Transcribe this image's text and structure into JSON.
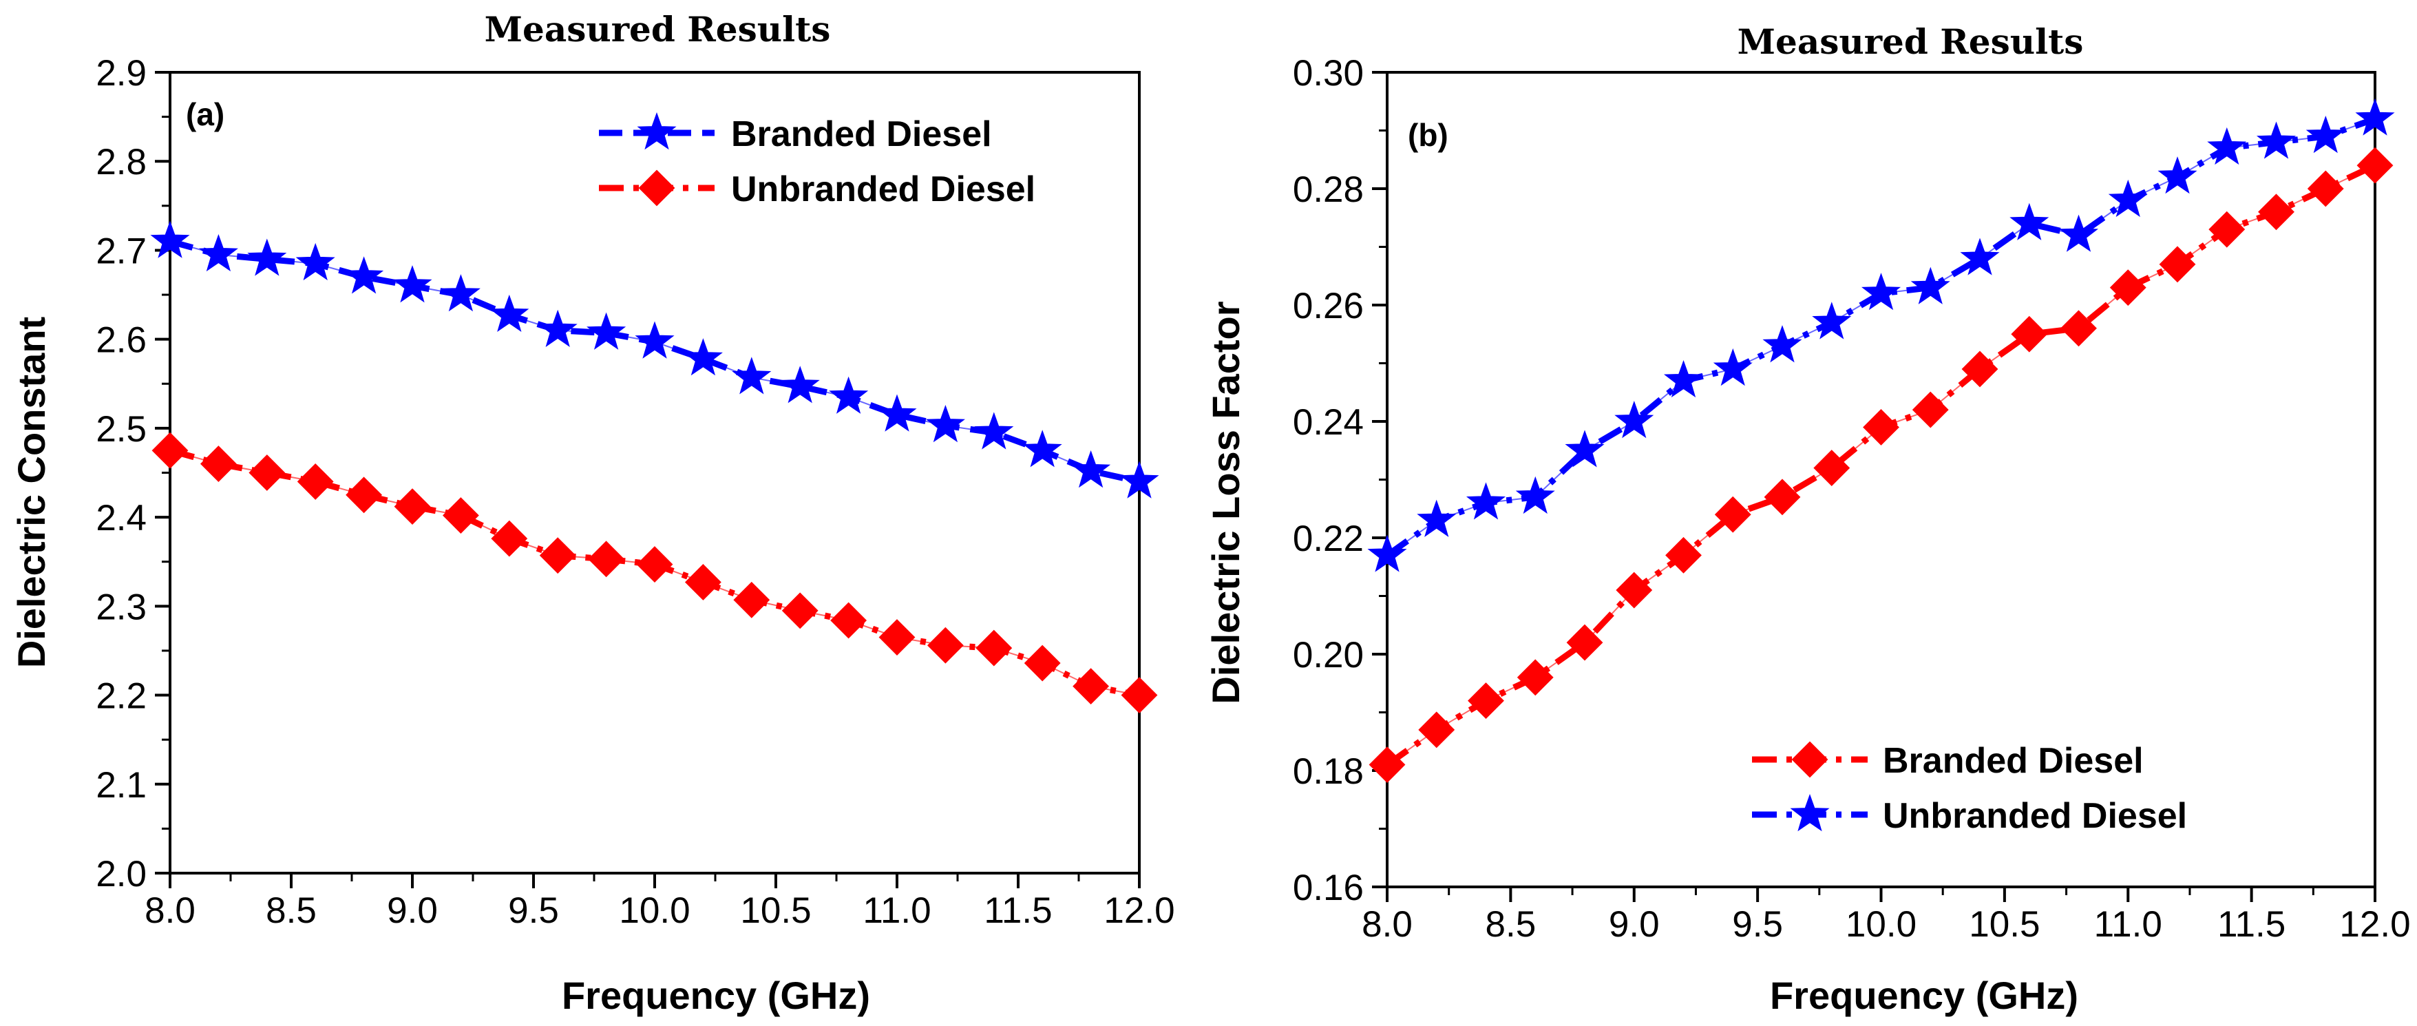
{
  "chart_data": [
    {
      "panel": "(a)",
      "type": "line",
      "title": "Measured Results",
      "xlabel": "Frequency (GHz)",
      "ylabel": "Dielectric Constant",
      "xlim": [
        8.0,
        12.0
      ],
      "ylim": [
        2.0,
        2.9
      ],
      "xticks": [
        8.0,
        8.5,
        9.0,
        9.5,
        10.0,
        10.5,
        11.0,
        11.5,
        12.0
      ],
      "xtick_labels": [
        "8.0",
        "8.5",
        "9.0",
        "9.5",
        "10.0",
        "10.5",
        "11.0",
        "11.5",
        "12.0"
      ],
      "yticks": [
        2.0,
        2.1,
        2.2,
        2.3,
        2.4,
        2.5,
        2.6,
        2.7,
        2.8,
        2.9
      ],
      "ytick_labels": [
        "2.0",
        "2.1",
        "2.2",
        "2.3",
        "2.4",
        "2.5",
        "2.6",
        "2.7",
        "2.8",
        "2.9"
      ],
      "legend_position": "top-right",
      "x": [
        8.0,
        8.2,
        8.4,
        8.6,
        8.8,
        9.0,
        9.2,
        9.4,
        9.6,
        9.8,
        10.0,
        10.2,
        10.4,
        10.6,
        10.8,
        11.0,
        11.2,
        11.4,
        11.6,
        11.8,
        12.0
      ],
      "series": [
        {
          "name": "Branded Diesel",
          "color": "#0000ff",
          "marker": "star",
          "dash": "dash",
          "values": [
            2.71,
            2.695,
            2.69,
            2.685,
            2.67,
            2.66,
            2.65,
            2.627,
            2.61,
            2.607,
            2.597,
            2.578,
            2.557,
            2.547,
            2.535,
            2.515,
            2.503,
            2.495,
            2.475,
            2.452,
            2.44
          ]
        },
        {
          "name": "Unbranded Diesel",
          "color": "#ff0000",
          "marker": "diamond",
          "dash": "dashdot",
          "values": [
            2.475,
            2.46,
            2.45,
            2.44,
            2.425,
            2.412,
            2.402,
            2.376,
            2.357,
            2.353,
            2.347,
            2.327,
            2.307,
            2.295,
            2.284,
            2.265,
            2.256,
            2.253,
            2.236,
            2.21,
            2.2
          ]
        }
      ]
    },
    {
      "panel": "(b)",
      "type": "line",
      "title": "Measured Results",
      "xlabel": "Frequency (GHz)",
      "ylabel": "Dielectric Loss Factor",
      "xlim": [
        8.0,
        12.0
      ],
      "ylim": [
        0.16,
        0.3
      ],
      "xticks": [
        8.0,
        8.5,
        9.0,
        9.5,
        10.0,
        10.5,
        11.0,
        11.5,
        12.0
      ],
      "xtick_labels": [
        "8.0",
        "8.5",
        "9.0",
        "9.5",
        "10.0",
        "10.5",
        "11.0",
        "11.5",
        "12.0"
      ],
      "yticks": [
        0.16,
        0.18,
        0.2,
        0.22,
        0.24,
        0.26,
        0.28,
        0.3
      ],
      "ytick_labels": [
        "0.16",
        "0.18",
        "0.20",
        "0.22",
        "0.24",
        "0.26",
        "0.28",
        "0.30"
      ],
      "legend_position": "bottom-right",
      "x": [
        8.0,
        8.2,
        8.4,
        8.6,
        8.8,
        9.0,
        9.2,
        9.4,
        9.6,
        9.8,
        10.0,
        10.2,
        10.4,
        10.6,
        10.8,
        11.0,
        11.2,
        11.4,
        11.6,
        11.8,
        12.0
      ],
      "series": [
        {
          "name": "Branded Diesel",
          "color": "#ff0000",
          "marker": "diamond",
          "dash": "dashdot",
          "values": [
            0.181,
            0.187,
            0.192,
            0.196,
            0.202,
            0.211,
            0.217,
            0.224,
            0.227,
            0.232,
            0.239,
            0.242,
            0.249,
            0.255,
            0.256,
            0.263,
            0.267,
            0.273,
            0.276,
            0.28,
            0.284
          ]
        },
        {
          "name": "Unbranded Diesel",
          "color": "#0000ff",
          "marker": "star",
          "dash": "dashdot",
          "values": [
            0.217,
            0.223,
            0.226,
            0.227,
            0.235,
            0.24,
            0.247,
            0.249,
            0.253,
            0.257,
            0.262,
            0.263,
            0.268,
            0.274,
            0.272,
            0.278,
            0.282,
            0.287,
            0.288,
            0.289,
            0.292
          ]
        }
      ]
    }
  ]
}
